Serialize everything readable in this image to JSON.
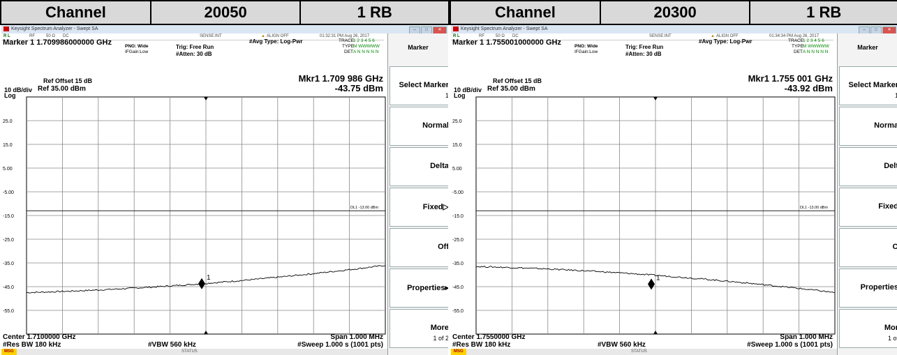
{
  "header": [
    {
      "label": "Channel",
      "channel": "20050",
      "rb": "1 RB"
    },
    {
      "label": "Channel",
      "channel": "20300",
      "rb": "1 RB"
    }
  ],
  "panels": [
    {
      "window_title": "Keysight Spectrum Analyzer - Swept SA",
      "rl": "R L",
      "rf": "RF",
      "ohm": "50 Ω",
      "dc": "DC",
      "sense": "SENSE:INT",
      "align": "ALIGN OFF",
      "time": "01:32:31 PM Aug 26, 2017",
      "marker_title": "Marker 1  1.709986000000 GHz",
      "pno": "PNO: Wide",
      "ifgain": "IFGain:Low",
      "trig": "Trig: Free Run",
      "atten": "#Atten: 30 dB",
      "avg": "#Avg Type: Log-Pwr",
      "trace_label": "TRACE",
      "trace_vals": "1 2 3 4 5 6",
      "type_label": "TYPE",
      "type_vals": "M WWWWW",
      "det_label": "DET",
      "det_vals": "A N N N N N",
      "mkr_freq": "Mkr1 1.709 986 GHz",
      "mkr_amp": "-43.75 dBm",
      "ref_offset": "Ref Offset 15 dB",
      "scale": "10 dB/div",
      "ref_level": "Ref 35.00 dBm",
      "log": "Log",
      "y_ticks": [
        "25.0",
        "15.0",
        "5.00",
        "-5.00",
        "-15.0",
        "-25.0",
        "-35.0",
        "-45.0",
        "-55.0"
      ],
      "dl_label": "DL1 -13.00 dBm",
      "marker_num": "1",
      "center": "Center 1.7100000 GHz",
      "span": "Span 1.000 MHz",
      "res_bw": "#Res BW 180 kHz",
      "vbw": "#VBW 560 kHz",
      "sweep": "#Sweep  1.000 s (1001 pts)",
      "msg": "MSG",
      "status": "STATUS",
      "softkeys": {
        "title": "Marker",
        "select_marker": "Select Marker",
        "select_value": "1",
        "normal": "Normal",
        "delta": "Delta",
        "fixed": "Fixed▷",
        "off": "Off",
        "properties": "Properties▸",
        "more": "More",
        "more_sub": "1 of 2"
      },
      "trace": {
        "start_dbm": -47.5,
        "end_dbm": -36.0,
        "marker_dbm": -43.75,
        "marker_frac": 0.5
      }
    },
    {
      "window_title": "Keysight Spectrum Analyzer - Swept SA",
      "rl": "R L",
      "rf": "RF",
      "ohm": "50 Ω",
      "dc": "DC",
      "sense": "SENSE:INT",
      "align": "ALIGN OFF",
      "time": "01:34:34 PM Aug 26, 2017",
      "marker_title": "Marker 1  1.755001000000 GHz",
      "pno": "PNO: Wide",
      "ifgain": "IFGain:Low",
      "trig": "Trig: Free Run",
      "atten": "#Atten: 30 dB",
      "avg": "#Avg Type: Log-Pwr",
      "trace_label": "TRACE",
      "trace_vals": "1 2 3 4 5 6",
      "type_label": "TYPE",
      "type_vals": "M WWWWW",
      "det_label": "DET",
      "det_vals": "A N N N N N",
      "mkr_freq": "Mkr1 1.755 001 GHz",
      "mkr_amp": "-43.92 dBm",
      "ref_offset": "Ref Offset 15 dB",
      "scale": "10 dB/div",
      "ref_level": "Ref 35.00 dBm",
      "log": "Log",
      "y_ticks": [
        "25.0",
        "15.0",
        "5.00",
        "-5.00",
        "-15.0",
        "-25.0",
        "-35.0",
        "-45.0",
        "-55.0"
      ],
      "dl_label": "DL1 -13.00 dBm",
      "marker_num": "1",
      "center": "Center 1.7550000 GHz",
      "span": "Span 1.000 MHz",
      "res_bw": "#Res BW 180 kHz",
      "vbw": "#VBW 560 kHz",
      "sweep": "#Sweep  1.000 s (1001 pts)",
      "msg": "MSG",
      "status": "STATUS",
      "softkeys": {
        "title": "Marker",
        "select_marker": "Select Marker",
        "select_value": "1",
        "normal": "Norma",
        "delta": "Delt",
        "fixed": "Fixed",
        "off": "O",
        "properties": "Properties",
        "more": "Mor",
        "more_sub": "1 of"
      },
      "trace": {
        "start_dbm": -36.5,
        "end_dbm": -47.5,
        "marker_dbm": -43.92,
        "marker_frac": 0.5
      }
    }
  ]
}
